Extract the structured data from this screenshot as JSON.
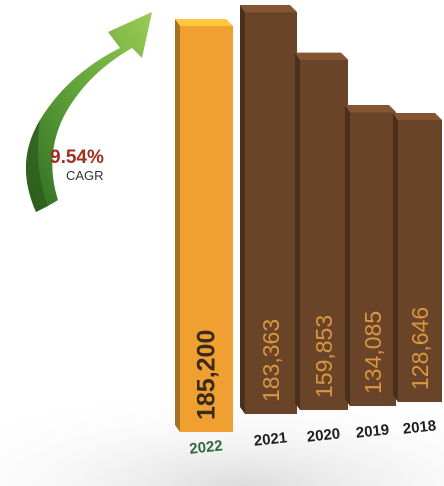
{
  "chart_data": {
    "type": "bar",
    "categories": [
      "2022",
      "2021",
      "2020",
      "2019",
      "2018"
    ],
    "values": [
      185200,
      183363,
      159853,
      134085,
      128646
    ],
    "value_labels": [
      "185,200",
      "183,363",
      "159,853",
      "134,085",
      "128,646"
    ],
    "title": "",
    "xlabel": "",
    "ylabel": "",
    "ylim": [
      0,
      190000
    ],
    "grid": false,
    "legend": "none",
    "cagr": {
      "value": "9.54%",
      "label": "CAGR"
    }
  },
  "colors": {
    "highlight_bar": "#F0A030",
    "bar": "#6A4428",
    "value_label_on_highlight": "#3a2a18",
    "value_label_on_bar": "#D9963F",
    "highlight_year": "#2e6b3c",
    "year": "#1e1e1e",
    "cagr_value": "#A32E20",
    "cagr_label": "#333333",
    "arrow": "#5FA33A"
  }
}
